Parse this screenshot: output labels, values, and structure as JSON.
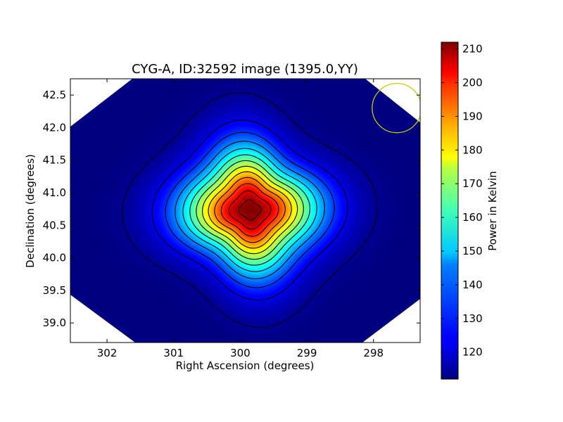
{
  "chart_data": {
    "type": "heatmap",
    "title": "CYG-A, ID:32592 image (1395.0,YY)",
    "xlabel": "Right Ascension (degrees)",
    "ylabel": "Declination (degrees)",
    "xlim": [
      302.55,
      297.3
    ],
    "ylim": [
      38.7,
      42.75
    ],
    "x_ticks": [
      302,
      301,
      300,
      299,
      298
    ],
    "x_tick_labels": [
      "302",
      "301",
      "300",
      "299",
      "298"
    ],
    "y_ticks": [
      39.0,
      39.5,
      40.0,
      40.5,
      41.0,
      41.5,
      42.0,
      42.5
    ],
    "y_tick_labels": [
      "39.0",
      "39.5",
      "40.0",
      "40.5",
      "41.0",
      "41.5",
      "42.0",
      "42.5"
    ],
    "colorbar": {
      "label": "Power in Kelvin",
      "range": [
        112,
        212
      ],
      "ticks": [
        120,
        130,
        140,
        150,
        160,
        170,
        180,
        190,
        200,
        210
      ],
      "tick_labels": [
        "120",
        "130",
        "140",
        "150",
        "160",
        "170",
        "180",
        "190",
        "200",
        "210"
      ],
      "colormap": "jet"
    },
    "source_peak": {
      "ra": 299.85,
      "dec": 40.73,
      "value": 212
    },
    "background_value": 112,
    "contour_levels": [
      114,
      122,
      130,
      138,
      146,
      154,
      162,
      170,
      178,
      186,
      194,
      202,
      209
    ],
    "beam_circle": {
      "ra": 297.65,
      "dec": 42.3,
      "radius_deg": 0.37,
      "color": "#c8c800"
    },
    "masked_corner_color": "#ffffff"
  }
}
